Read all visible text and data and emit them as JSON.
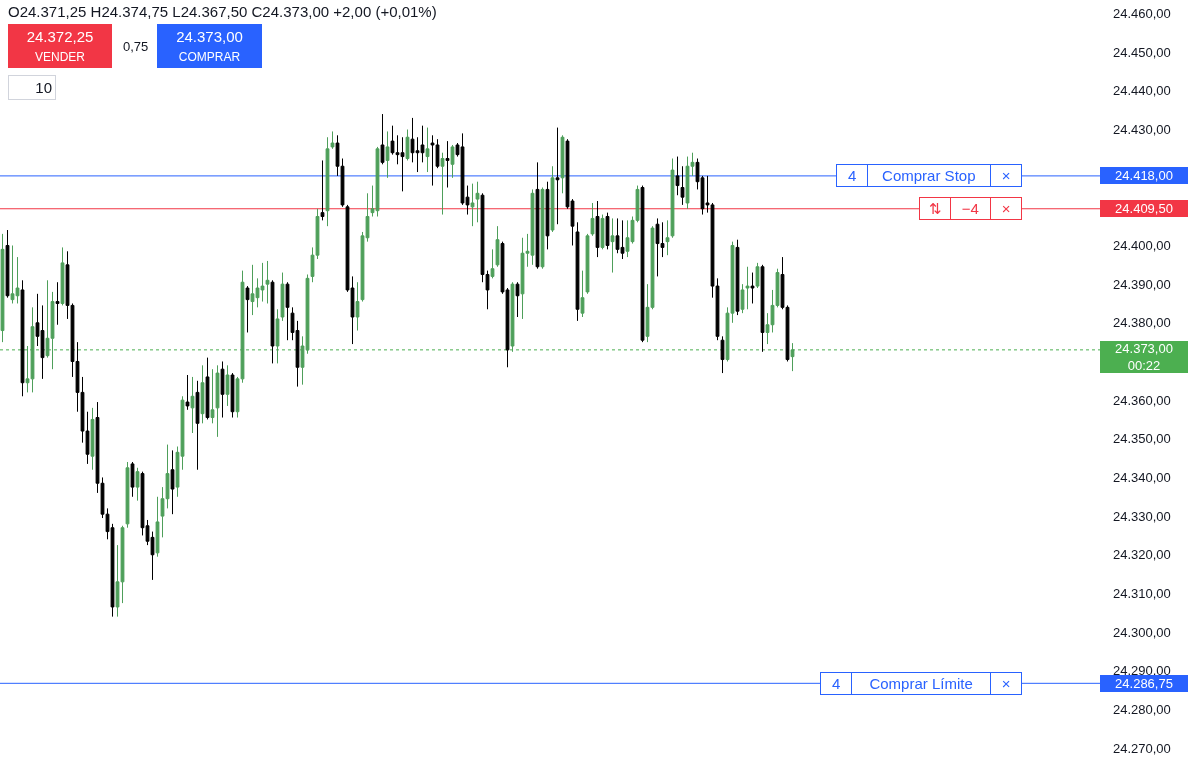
{
  "chart_data": {
    "type": "candlestick",
    "categories": [
      null,
      null,
      null,
      null,
      null,
      null,
      null,
      null,
      null,
      null,
      null,
      null,
      null,
      null,
      null,
      null,
      null,
      null,
      null,
      null,
      null,
      null,
      null,
      null,
      null,
      null,
      null,
      null,
      null,
      null,
      null,
      null,
      null,
      null,
      null,
      null,
      null,
      null,
      null,
      null,
      null,
      null,
      null,
      null,
      null,
      null,
      null,
      null,
      null,
      null,
      null,
      null,
      null,
      null,
      null,
      null,
      null,
      null,
      null,
      null,
      null,
      null,
      null,
      null,
      null,
      null,
      null,
      null,
      null,
      null,
      null,
      null,
      null,
      null,
      null,
      null,
      null,
      null,
      null,
      null,
      null,
      null,
      null,
      null,
      null,
      null,
      null,
      null,
      null,
      null,
      null,
      null,
      null,
      null,
      null,
      null,
      null,
      null,
      null,
      null,
      null,
      null,
      null,
      null,
      null,
      null,
      null,
      null,
      null,
      null,
      null,
      null,
      null,
      null,
      null,
      null,
      null,
      null,
      null,
      null,
      null,
      null,
      null,
      null,
      null,
      null,
      null,
      null,
      null,
      null,
      null,
      null,
      null,
      null,
      null,
      null,
      null,
      null,
      null,
      null,
      null,
      null,
      null,
      null,
      null,
      null,
      null,
      null,
      null,
      null,
      null,
      null,
      null,
      null,
      null,
      null,
      null,
      null,
      null,
      null,
      null,
      null,
      null,
      null,
      null,
      null,
      null,
      null,
      null,
      null,
      null,
      null,
      null,
      null,
      null,
      null,
      null,
      null,
      null,
      null,
      null,
      null,
      null,
      null,
      null,
      null,
      null,
      null,
      null,
      null,
      null,
      null,
      null,
      null,
      null,
      null,
      null,
      null,
      null,
      null,
      null,
      null,
      null,
      null,
      null,
      null,
      null,
      null,
      null,
      null,
      null,
      null,
      null,
      null,
      null,
      null,
      null,
      null,
      null,
      null
    ],
    "ohlc": [
      [
        24378,
        24403,
        24375,
        24399
      ],
      [
        24400,
        24404,
        24386.5,
        24387
      ],
      [
        24386,
        24400,
        24385,
        24387.5
      ],
      [
        24387,
        24397,
        24385,
        24389
      ],
      [
        24388.5,
        24391,
        24361,
        24364.5
      ],
      [
        24364.5,
        24374,
        24362,
        24365.5
      ],
      [
        24365.5,
        24384,
        24362,
        24379
      ],
      [
        24380,
        24387.5,
        24374,
        24376.5
      ],
      [
        24378,
        24384.5,
        24365.5,
        24371
      ],
      [
        24371.5,
        24391,
        24371,
        24376
      ],
      [
        24376,
        24388,
        24368,
        24385.5
      ],
      [
        24385.5,
        24390.5,
        24379.5,
        24385
      ],
      [
        24385,
        24399.5,
        24384.5,
        24395.5
      ],
      [
        24395,
        24398.5,
        24381,
        24384.5
      ],
      [
        24384.5,
        24385,
        24366,
        24370
      ],
      [
        24370,
        24375,
        24357,
        24362
      ],
      [
        24362,
        24366,
        24349,
        24352
      ],
      [
        24352,
        24357,
        24343.5,
        24346
      ],
      [
        24345.5,
        24358,
        24342,
        24355
      ],
      [
        24355.5,
        24359.5,
        24336,
        24338.5
      ],
      [
        24338.5,
        24340,
        24329.5,
        24330.5
      ],
      [
        24330.5,
        24332,
        24324,
        24326
      ],
      [
        24327,
        24328,
        24304,
        24306.5
      ],
      [
        24306.5,
        24322.5,
        24304,
        24313
      ],
      [
        24313,
        24327.5,
        24307.5,
        24327
      ],
      [
        24328,
        24344,
        24327,
        24342.5
      ],
      [
        24343.5,
        24344,
        24335,
        24337.5
      ],
      [
        24337.5,
        24342.5,
        24334,
        24341.5
      ],
      [
        24341,
        24341.5,
        24325,
        24327
      ],
      [
        24327.5,
        24329,
        24322.5,
        24323.5
      ],
      [
        24324.5,
        24326,
        24313.5,
        24320
      ],
      [
        24320.5,
        24335,
        24319.5,
        24328.5
      ],
      [
        24330,
        24337.5,
        24324.5,
        24334.5
      ],
      [
        24334.5,
        24348.5,
        24332,
        24341
      ],
      [
        24342,
        24347,
        24330.5,
        24337
      ],
      [
        24337.5,
        24348,
        24335,
        24346.5
      ],
      [
        24345.5,
        24361,
        24342,
        24360
      ],
      [
        24359.5,
        24366.5,
        24357.5,
        24358.5
      ],
      [
        24358,
        24366,
        24351.5,
        24361
      ],
      [
        24362,
        24365,
        24342,
        24354
      ],
      [
        24356.5,
        24369,
        24354,
        24364.5
      ],
      [
        24366,
        24371,
        24355,
        24355.5
      ],
      [
        24355.5,
        24368,
        24354,
        24357.5
      ],
      [
        24358,
        24369,
        24350.5,
        24367
      ],
      [
        24368,
        24370,
        24355.5,
        24361.5
      ],
      [
        24361.5,
        24369,
        24358.5,
        24366.5
      ],
      [
        24366.5,
        24367,
        24355.5,
        24357
      ],
      [
        24357,
        24366,
        24355.5,
        24365.5
      ],
      [
        24365.5,
        24393.5,
        24364.5,
        24390.5
      ],
      [
        24389,
        24389.5,
        24377.5,
        24386
      ],
      [
        24385.5,
        24395,
        24382,
        24387.5
      ],
      [
        24386.5,
        24391.5,
        24384,
        24389
      ],
      [
        24388.5,
        24395.5,
        24385.5,
        24389.5
      ],
      [
        24390,
        24396,
        24385,
        24391
      ],
      [
        24390.5,
        24391,
        24369.5,
        24374
      ],
      [
        24374,
        24383.5,
        24369.5,
        24381
      ],
      [
        24381.5,
        24393,
        24380.5,
        24390
      ],
      [
        24390,
        24390.5,
        24375.5,
        24384
      ],
      [
        24382.5,
        24384,
        24375.5,
        24377.5
      ],
      [
        24378,
        24380.5,
        24363.5,
        24368.5
      ],
      [
        24368.5,
        24376.5,
        24364,
        24374
      ],
      [
        24373,
        24392.5,
        24372,
        24391.5
      ],
      [
        24392,
        24399.5,
        24390.5,
        24397.5
      ],
      [
        24397.5,
        24409.5,
        24396.5,
        24407.5
      ],
      [
        24408.5,
        24422,
        24406.5,
        24407.5
      ],
      [
        24409,
        24428,
        24405,
        24425
      ],
      [
        24425.5,
        24429.5,
        24425,
        24426.5
      ],
      [
        24426.5,
        24428.5,
        24418,
        24420.5
      ],
      [
        24420.5,
        24422.5,
        24410,
        24410.5
      ],
      [
        24410,
        24410.5,
        24388,
        24388.5
      ],
      [
        24389,
        24392,
        24374.5,
        24381.5
      ],
      [
        24381.5,
        24390.5,
        24378,
        24385.5
      ],
      [
        24386,
        24403.5,
        24385.5,
        24402.5
      ],
      [
        24402,
        24413.5,
        24401,
        24407.5
      ],
      [
        24408.5,
        24415.5,
        24407.5,
        24409.5
      ],
      [
        24409,
        24425.5,
        24407.5,
        24425
      ],
      [
        24426,
        24434,
        24421,
        24421.5
      ],
      [
        24422,
        24429.5,
        24417.5,
        24425.5
      ],
      [
        24427,
        24431,
        24423.5,
        24424
      ],
      [
        24424,
        24428.5,
        24421,
        24423.5
      ],
      [
        24424,
        24428,
        24414,
        24423
      ],
      [
        24422.5,
        24430,
        24422,
        24428
      ],
      [
        24427.5,
        24433,
        24421.5,
        24424
      ],
      [
        24424.5,
        24428,
        24419,
        24424
      ],
      [
        24426,
        24431,
        24421.5,
        24424
      ],
      [
        24423,
        24430.5,
        24419,
        24425
      ],
      [
        24426.5,
        24428.5,
        24415.5,
        24426
      ],
      [
        24426,
        24427.5,
        24420,
        24420.5
      ],
      [
        24420.5,
        24424,
        24408,
        24422.5
      ],
      [
        24422.5,
        24427,
        24415,
        24422
      ],
      [
        24421,
        24426,
        24417.5,
        24425.5
      ],
      [
        24426,
        24426.5,
        24423,
        24423.5
      ],
      [
        24425.5,
        24429,
        24410.5,
        24411
      ],
      [
        24412.5,
        24415.5,
        24408,
        24410.5
      ],
      [
        24410,
        24416,
        24405,
        24411
      ],
      [
        24412,
        24416.5,
        24406,
        24413.5
      ],
      [
        24413,
        24413.5,
        24390.5,
        24392.5
      ],
      [
        24392.5,
        24393.5,
        24383.5,
        24388.5
      ],
      [
        24392,
        24399,
        24391.5,
        24394
      ],
      [
        24395,
        24405,
        24394.5,
        24401.5
      ],
      [
        24400.5,
        24401,
        24387.5,
        24388
      ],
      [
        24388.5,
        24389,
        24368.5,
        24373
      ],
      [
        24374,
        24390.5,
        24372.5,
        24390
      ],
      [
        24390,
        24390.5,
        24381.5,
        24387
      ],
      [
        24387.5,
        24402,
        24381,
        24398
      ],
      [
        24398,
        24403,
        24394.5,
        24398.5
      ],
      [
        24397.5,
        24414.5,
        24395,
        24413.5
      ],
      [
        24414.5,
        24421.5,
        24394,
        24394.5
      ],
      [
        24394.5,
        24415,
        24394,
        24414.5
      ],
      [
        24414.5,
        24416.5,
        24399,
        24402.5
      ],
      [
        24404,
        24420.5,
        24403.5,
        24417.5
      ],
      [
        24417.5,
        24430.5,
        24405.5,
        24417
      ],
      [
        24417.5,
        24428.5,
        24413.5,
        24428
      ],
      [
        24427,
        24427.5,
        24409.5,
        24410
      ],
      [
        24411.5,
        24412,
        24400,
        24405
      ],
      [
        24403.5,
        24406,
        24380.5,
        24383.5
      ],
      [
        24382.5,
        24393.5,
        24381.5,
        24386.5
      ],
      [
        24388,
        24403,
        24387.5,
        24402.5
      ],
      [
        24403,
        24411,
        24402.5,
        24407
      ],
      [
        24407.5,
        24411.5,
        24397,
        24399.5
      ],
      [
        24399.5,
        24408,
        24399,
        24407
      ],
      [
        24407.5,
        24408.5,
        24399,
        24400
      ],
      [
        24401,
        24407,
        24393,
        24402.5
      ],
      [
        24402.5,
        24407,
        24398,
        24399
      ],
      [
        24399.5,
        24406.5,
        24396.5,
        24398
      ],
      [
        24398.5,
        24406.5,
        24397,
        24402
      ],
      [
        24401,
        24407.5,
        24400.5,
        24406.5
      ],
      [
        24406.5,
        24415.5,
        24406,
        24414.5
      ],
      [
        24415,
        24415.5,
        24375,
        24375.5
      ],
      [
        24376.5,
        24390,
        24375,
        24384
      ],
      [
        24384,
        24405,
        24383.5,
        24404.5
      ],
      [
        24405.5,
        24407,
        24392,
        24400.5
      ],
      [
        24400.5,
        24406,
        24397,
        24399.5
      ],
      [
        24401,
        24406.5,
        24397.5,
        24402
      ],
      [
        24402.5,
        24422.5,
        24402,
        24419.5
      ],
      [
        24418,
        24423,
        24413,
        24415.5
      ],
      [
        24415,
        24420.5,
        24410.5,
        24412.5
      ],
      [
        24411,
        24423,
        24409.5,
        24420.5
      ],
      [
        24420.5,
        24424,
        24418,
        24421.5
      ],
      [
        24421.5,
        24422.5,
        24414.5,
        24416.5
      ],
      [
        24417.5,
        24418,
        24408,
        24409.5
      ],
      [
        24411,
        24418,
        24408.5,
        24410.5
      ],
      [
        24410.5,
        24411,
        24386.5,
        24389.5
      ],
      [
        24389.5,
        24391.5,
        24375.5,
        24376.5
      ],
      [
        24375.5,
        24376.5,
        24367,
        24370.5
      ],
      [
        24370.5,
        24384,
        24370,
        24382.5
      ],
      [
        24382.5,
        24401,
        24380,
        24400
      ],
      [
        24399.5,
        24401.5,
        24382,
        24383
      ],
      [
        24383.5,
        24390,
        24382.5,
        24388.5
      ],
      [
        24389,
        24394.5,
        24383.5,
        24389.5
      ],
      [
        24389.5,
        24393,
        24385,
        24389
      ],
      [
        24389.5,
        24395.5,
        24389,
        24394.5
      ],
      [
        24394.5,
        24395,
        24372.5,
        24377.5
      ],
      [
        24377.5,
        24382.5,
        24374.5,
        24379.5
      ],
      [
        24379.5,
        24388.5,
        24377.5,
        24384.5
      ],
      [
        24384.5,
        24394,
        24384,
        24393
      ],
      [
        24392.5,
        24397,
        24383.5,
        24384
      ],
      [
        24384,
        24384.5,
        24370,
        24370.5
      ],
      [
        24371.25,
        24374.75,
        24367.5,
        24373
      ],
      null,
      null,
      null,
      null,
      null,
      null,
      null,
      null,
      null,
      null,
      null,
      null,
      null,
      null,
      null,
      null,
      null,
      null,
      null,
      null,
      null,
      null,
      null,
      null,
      null,
      null,
      null,
      null,
      null,
      null,
      null,
      null,
      null,
      null,
      null,
      null,
      null,
      null,
      null,
      null,
      null,
      null,
      null,
      null,
      null,
      null,
      null,
      null,
      null,
      null,
      null,
      null,
      null,
      null,
      null,
      null,
      null,
      null,
      null,
      null,
      null
    ],
    "colors": [
      "#4e9f5a",
      "#000000",
      "#4e9f5a",
      "#4e9f5a",
      "#000000",
      "#4e9f5a",
      "#4e9f5a",
      "#000000",
      "#000000",
      "#4e9f5a",
      "#4e9f5a",
      "#000000",
      "#4e9f5a",
      "#000000",
      "#000000",
      "#000000",
      "#000000",
      "#000000",
      "#4e9f5a",
      "#000000",
      "#000000",
      "#000000",
      "#000000",
      "#4e9f5a",
      "#4e9f5a",
      "#4e9f5a",
      "#000000",
      "#4e9f5a",
      "#000000",
      "#000000",
      "#000000",
      "#4e9f5a",
      "#4e9f5a",
      "#4e9f5a",
      "#000000",
      "#4e9f5a",
      "#4e9f5a",
      "#000000",
      "#4e9f5a",
      "#000000",
      "#4e9f5a",
      "#000000",
      "#4e9f5a",
      "#4e9f5a",
      "#000000",
      "#4e9f5a",
      "#000000",
      "#4e9f5a",
      "#4e9f5a",
      "#000000",
      "#4e9f5a",
      "#4e9f5a",
      "#4e9f5a",
      "#4e9f5a",
      "#000000",
      "#4e9f5a",
      "#4e9f5a",
      "#000000",
      "#000000",
      "#000000",
      "#4e9f5a",
      "#4e9f5a",
      "#4e9f5a",
      "#4e9f5a",
      "#000000",
      "#4e9f5a",
      "#4e9f5a",
      "#000000",
      "#000000",
      "#000000",
      "#000000",
      "#4e9f5a",
      "#4e9f5a",
      "#4e9f5a",
      "#4e9f5a",
      "#4e9f5a",
      "#000000",
      "#4e9f5a",
      "#000000",
      "#000000",
      "#000000",
      "#4e9f5a",
      "#000000",
      "#000000",
      "#000000",
      "#4e9f5a",
      "#000000",
      "#000000",
      "#4e9f5a",
      "#000000",
      "#4e9f5a",
      "#000000",
      "#000000",
      "#000000",
      "#4e9f5a",
      "#4e9f5a",
      "#000000",
      "#000000",
      "#4e9f5a",
      "#4e9f5a",
      "#000000",
      "#000000",
      "#4e9f5a",
      "#000000",
      "#4e9f5a",
      "#4e9f5a",
      "#4e9f5a",
      "#000000",
      "#4e9f5a",
      "#000000",
      "#4e9f5a",
      "#000000",
      "#4e9f5a",
      "#000000",
      "#000000",
      "#000000",
      "#4e9f5a",
      "#4e9f5a",
      "#4e9f5a",
      "#000000",
      "#4e9f5a",
      "#000000",
      "#4e9f5a",
      "#000000",
      "#000000",
      "#4e9f5a",
      "#4e9f5a",
      "#4e9f5a",
      "#000000",
      "#4e9f5a",
      "#4e9f5a",
      "#000000",
      "#000000",
      "#4e9f5a",
      "#4e9f5a",
      "#000000",
      "#000000",
      "#4e9f5a",
      "#4e9f5a",
      "#000000",
      "#000000",
      "#000000",
      "#000000",
      "#000000",
      "#000000",
      "#4e9f5a",
      "#4e9f5a",
      "#000000",
      "#4e9f5a",
      "#4e9f5a",
      "#000000",
      "#4e9f5a",
      "#000000",
      "#4e9f5a",
      "#4e9f5a",
      "#4e9f5a",
      "#000000",
      "#000000",
      "#4e9f5a",
      null,
      null,
      null,
      null,
      null,
      null,
      null,
      null,
      null,
      null,
      null,
      null,
      null,
      null,
      null,
      null,
      null,
      null,
      null,
      null,
      null,
      null,
      null,
      null,
      null,
      null,
      null,
      null,
      null,
      null,
      null,
      null,
      null,
      null,
      null,
      null,
      null,
      null,
      null,
      null,
      null,
      null,
      null,
      null,
      null,
      null,
      null,
      null,
      null,
      null,
      null,
      null,
      null,
      null,
      null,
      null,
      null,
      null,
      null,
      null,
      null
    ],
    "ylim": [
      24262,
      24463.5
    ],
    "yticks": [
      {
        "value": 24270,
        "label": "24.270,00"
      },
      {
        "value": 24280,
        "label": "24.280,00"
      },
      {
        "value": 24290,
        "label": "24.290,00"
      },
      {
        "value": 24300,
        "label": "24.300,00"
      },
      {
        "value": 24310,
        "label": "24.310,00"
      },
      {
        "value": 24320,
        "label": "24.320,00"
      },
      {
        "value": 24330,
        "label": "24.330,00"
      },
      {
        "value": 24340,
        "label": "24.340,00"
      },
      {
        "value": 24350,
        "label": "24.350,00"
      },
      {
        "value": 24360,
        "label": "24.360,00"
      },
      {
        "value": 24380,
        "label": "24.380,00"
      },
      {
        "value": 24390,
        "label": "24.390,00"
      },
      {
        "value": 24400,
        "label": "24.400,00"
      },
      {
        "value": 24430,
        "label": "24.430,00"
      },
      {
        "value": 24440,
        "label": "24.440,00"
      },
      {
        "value": 24450,
        "label": "24.450,00"
      },
      {
        "value": 24460,
        "label": "24.460,00"
      }
    ],
    "tick_labels": "y",
    "ref_lines": [
      {
        "axis": "y",
        "value": 24418,
        "label": "24.418,00",
        "color": "#2962ff"
      },
      {
        "axis": "y",
        "value": 24409.5,
        "label": "24.409,50",
        "color": "#f23645"
      },
      {
        "axis": "y",
        "value": 24373,
        "label": "24.373,00\n00:22",
        "color": "#4caf50",
        "line_style": "dotted"
      },
      {
        "axis": "y",
        "value": 24286.75,
        "label": "24.286,75",
        "color": "#2962ff"
      }
    ],
    "annotations": [
      "O24.371,25 H24.374,75 L24.367,50 C24.373,00 +2,00 (+0,01%)",
      "24.372,25\nVENDER",
      "0,75",
      "24.373,00\nCOMPRAR",
      "10",
      {
        "text": "4",
        "y": 24418
      },
      {
        "text": "Comprar Stop",
        "y": 24418
      },
      {
        "text": "×",
        "y": 24418
      },
      {
        "text": "⇅",
        "y": 24409.5
      },
      {
        "text": "−4",
        "y": 24409.5
      },
      {
        "text": "×",
        "y": 24409.5
      },
      {
        "text": "4",
        "y": 24286.75
      },
      {
        "text": "Comprar Límite",
        "y": 24286.75
      },
      {
        "text": "×",
        "y": 24286.75
      }
    ]
  }
}
